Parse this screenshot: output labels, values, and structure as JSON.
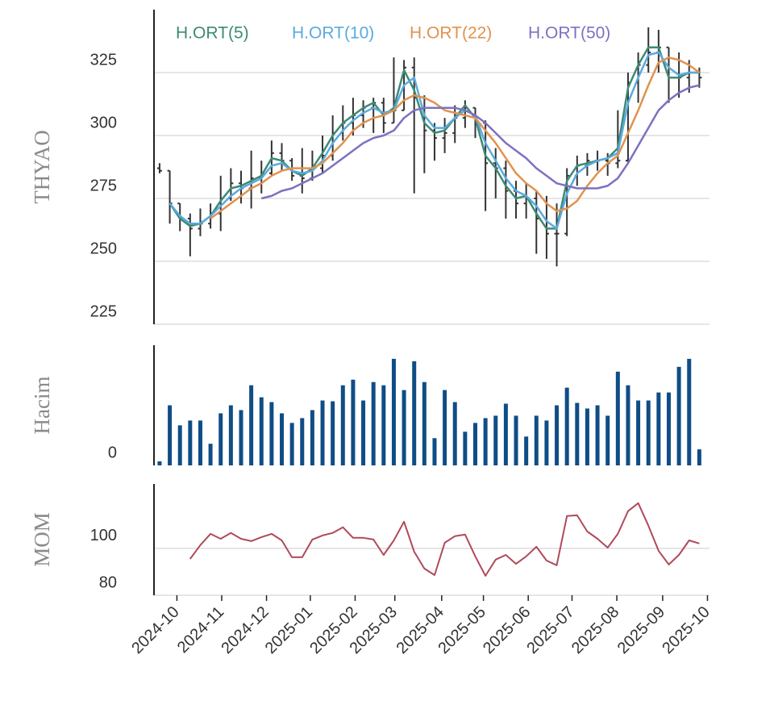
{
  "chart_data": [
    {
      "type": "ohlc",
      "ylabel": "THYAO",
      "ylim": [
        225,
        350
      ],
      "yticks": [
        225,
        250,
        275,
        300,
        325
      ],
      "grid": true,
      "color": "#333333",
      "open": [
        287,
        286,
        273,
        267,
        263,
        265,
        269,
        275,
        281,
        279,
        283,
        285,
        293,
        290,
        284,
        283,
        287,
        292,
        301,
        305,
        308,
        311,
        313,
        305,
        310,
        327,
        315,
        302,
        299,
        301,
        307,
        311,
        305,
        289,
        287,
        278,
        273,
        275,
        267,
        261,
        261,
        284,
        288,
        290,
        290,
        289,
        290,
        321,
        328,
        333,
        335,
        323,
        323,
        325
      ],
      "high": [
        289,
        286,
        273,
        269,
        271,
        273,
        284,
        287,
        286,
        294,
        290,
        298,
        297,
        291,
        295,
        294,
        300,
        308,
        312,
        315,
        314,
        315,
        315,
        331,
        330,
        331,
        316,
        305,
        307,
        312,
        314,
        311,
        306,
        295,
        290,
        282,
        281,
        278,
        276,
        273,
        287,
        292,
        293,
        294,
        293,
        310,
        325,
        333,
        343,
        342,
        335,
        333,
        330,
        327
      ],
      "low": [
        285,
        265,
        262,
        252,
        260,
        263,
        262,
        274,
        273,
        271,
        277,
        284,
        286,
        282,
        277,
        282,
        285,
        290,
        298,
        300,
        303,
        301,
        301,
        305,
        310,
        277,
        285,
        290,
        293,
        297,
        303,
        299,
        270,
        275,
        267,
        267,
        267,
        253,
        251,
        248,
        260,
        280,
        284,
        286,
        284,
        287,
        289,
        313,
        325,
        325,
        313,
        315,
        317,
        319
      ],
      "close": [
        286,
        273,
        267,
        263,
        265,
        269,
        275,
        281,
        279,
        283,
        285,
        293,
        290,
        284,
        283,
        287,
        292,
        301,
        305,
        308,
        311,
        313,
        305,
        310,
        327,
        315,
        302,
        299,
        301,
        307,
        311,
        305,
        289,
        287,
        278,
        273,
        275,
        267,
        261,
        261,
        284,
        288,
        290,
        290,
        289,
        290,
        321,
        328,
        333,
        335,
        323,
        323,
        325,
        323
      ],
      "series": [
        {
          "name": "H.ORT(5)",
          "color": "#3d8a76",
          "values": [
            null,
            273,
            267,
            264,
            265,
            268,
            274,
            279,
            280,
            282,
            284,
            291,
            290,
            286,
            284,
            287,
            293,
            300,
            305,
            308,
            311,
            313,
            308,
            311,
            326,
            318,
            305,
            301,
            302,
            307,
            312,
            307,
            292,
            287,
            280,
            275,
            276,
            269,
            263,
            263,
            282,
            288,
            289,
            290,
            291,
            295,
            319,
            328,
            335,
            335,
            323,
            323,
            325,
            325
          ]
        },
        {
          "name": "H.ORT(10)",
          "color": "#5aaae0",
          "values": [
            null,
            273,
            268,
            265,
            265,
            268,
            272,
            276,
            279,
            281,
            283,
            288,
            289,
            286,
            285,
            286,
            290,
            297,
            302,
            306,
            309,
            311,
            309,
            310,
            320,
            323,
            308,
            303,
            303,
            307,
            310,
            308,
            297,
            290,
            283,
            278,
            276,
            272,
            266,
            263,
            277,
            285,
            288,
            290,
            291,
            293,
            313,
            323,
            332,
            333,
            327,
            324,
            325,
            325
          ]
        },
        {
          "name": "H.ORT(22)",
          "color": "#e2924f",
          "values": [
            null,
            null,
            null,
            null,
            null,
            267,
            270,
            273,
            276,
            279,
            281,
            284,
            286,
            287,
            287,
            287,
            289,
            293,
            297,
            302,
            305,
            307,
            308,
            310,
            314,
            316,
            315,
            313,
            310,
            309,
            308,
            307,
            302,
            297,
            291,
            285,
            281,
            278,
            273,
            270,
            271,
            274,
            280,
            285,
            289,
            292,
            301,
            310,
            320,
            329,
            331,
            330,
            328,
            325
          ]
        },
        {
          "name": "H.ORT(50)",
          "color": "#7b72c2",
          "values": [
            null,
            null,
            null,
            null,
            null,
            null,
            null,
            null,
            null,
            null,
            275,
            276,
            278,
            279,
            281,
            283,
            285,
            288,
            291,
            294,
            297,
            299,
            300,
            302,
            307,
            310,
            311,
            311,
            311,
            311,
            310,
            308,
            305,
            301,
            297,
            294,
            291,
            287,
            284,
            281,
            280,
            279,
            279,
            279,
            280,
            283,
            289,
            296,
            303,
            310,
            314,
            317,
            319,
            320
          ]
        }
      ]
    },
    {
      "type": "bar",
      "ylabel": "Hacim",
      "ylim": [
        0,
        150
      ],
      "yticks": [
        0
      ],
      "grid": false,
      "color": "#0e4d85",
      "values": [
        5,
        75,
        50,
        56,
        56,
        27,
        65,
        75,
        69,
        100,
        85,
        79,
        65,
        53,
        59,
        69,
        81,
        80,
        100,
        107,
        81,
        104,
        100,
        133,
        94,
        130,
        104,
        34,
        94,
        79,
        42,
        53,
        59,
        62,
        77,
        62,
        36,
        62,
        56,
        75,
        97,
        78,
        71,
        75,
        62,
        117,
        100,
        81,
        81,
        91,
        91,
        123,
        133,
        20
      ]
    },
    {
      "type": "line",
      "ylabel": "MOM",
      "ylim": [
        80,
        127.5
      ],
      "yticks": [
        80,
        100
      ],
      "grid": true,
      "color": "#b04a5a",
      "values": [
        null,
        null,
        null,
        95.5,
        101.4,
        106.2,
        104.1,
        106.6,
        104.1,
        103.1,
        104.8,
        106.2,
        103.4,
        96.2,
        96.2,
        103.8,
        105.5,
        106.6,
        109,
        104.5,
        104.5,
        103.8,
        97.2,
        103.4,
        111.4,
        98.6,
        91.4,
        88.6,
        102.4,
        105.2,
        105.9,
        96.6,
        88.3,
        95.2,
        97.2,
        93.4,
        96.6,
        100.7,
        94.8,
        92.8,
        113.8,
        114.1,
        107.2,
        104.1,
        100.3,
        106.2,
        115.9,
        119.3,
        109.7,
        99,
        93.1,
        97.2,
        103.4,
        102.1
      ],
      "xlim": [
        -0.55,
        54
      ],
      "xticks": [
        {
          "value": 1.7,
          "label": "2024-10"
        },
        {
          "value": 6.1,
          "label": "2024-11"
        },
        {
          "value": 10.5,
          "label": "2024-12"
        },
        {
          "value": 14.8,
          "label": "2025-01"
        },
        {
          "value": 19.2,
          "label": "2025-02"
        },
        {
          "value": 23.1,
          "label": "2025-03"
        },
        {
          "value": 27.7,
          "label": "2025-04"
        },
        {
          "value": 31.8,
          "label": "2025-05"
        },
        {
          "value": 36.2,
          "label": "2025-06"
        },
        {
          "value": 40.5,
          "label": "2025-07"
        },
        {
          "value": 44.9,
          "label": "2025-08"
        },
        {
          "value": 49.4,
          "label": "2025-09"
        },
        {
          "value": 53.8,
          "label": "2025-10"
        }
      ]
    }
  ]
}
